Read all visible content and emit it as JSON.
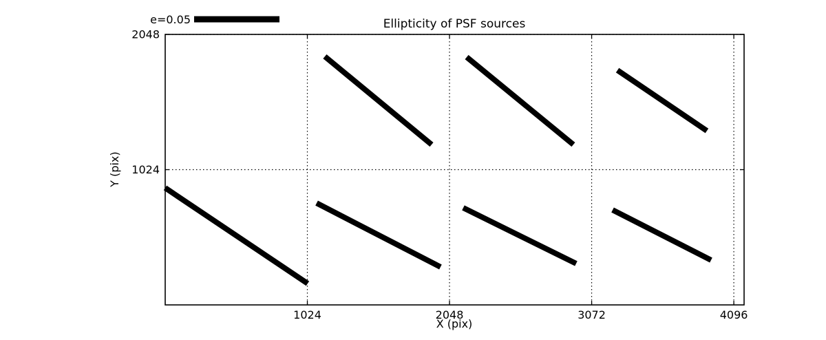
{
  "figure": {
    "background": "#ffffff",
    "line_color": "#000000"
  },
  "chart_data": {
    "type": "line",
    "subtype": "ellipticity-whisker-plot",
    "title": "Ellipticity of PSF sources",
    "xlabel": "X (pix)",
    "ylabel": "Y (pix)",
    "xlim": [
      0,
      4170
    ],
    "ylim": [
      0,
      2048
    ],
    "xticks": [
      1024,
      2048,
      3072,
      4096
    ],
    "yticks": [
      1024,
      2048
    ],
    "grid": {
      "style": "dotted",
      "color": "#000000",
      "on": true
    },
    "legend": {
      "label": "e=0.05",
      "position": "top-left-above-axes",
      "represents": "ellipticity scale bar"
    },
    "segments": [
      {
        "x1": 1150,
        "y1": 1881,
        "x2": 1919,
        "y2": 1214
      },
      {
        "x1": 2172,
        "y1": 1876,
        "x2": 2940,
        "y2": 1214
      },
      {
        "x1": 3258,
        "y1": 1777,
        "x2": 3902,
        "y2": 1318
      },
      {
        "x1": 0,
        "y1": 886,
        "x2": 1026,
        "y2": 162
      },
      {
        "x1": 1091,
        "y1": 771,
        "x2": 1983,
        "y2": 287
      },
      {
        "x1": 2147,
        "y1": 735,
        "x2": 2960,
        "y2": 313
      },
      {
        "x1": 3223,
        "y1": 719,
        "x2": 3932,
        "y2": 339
      }
    ]
  }
}
